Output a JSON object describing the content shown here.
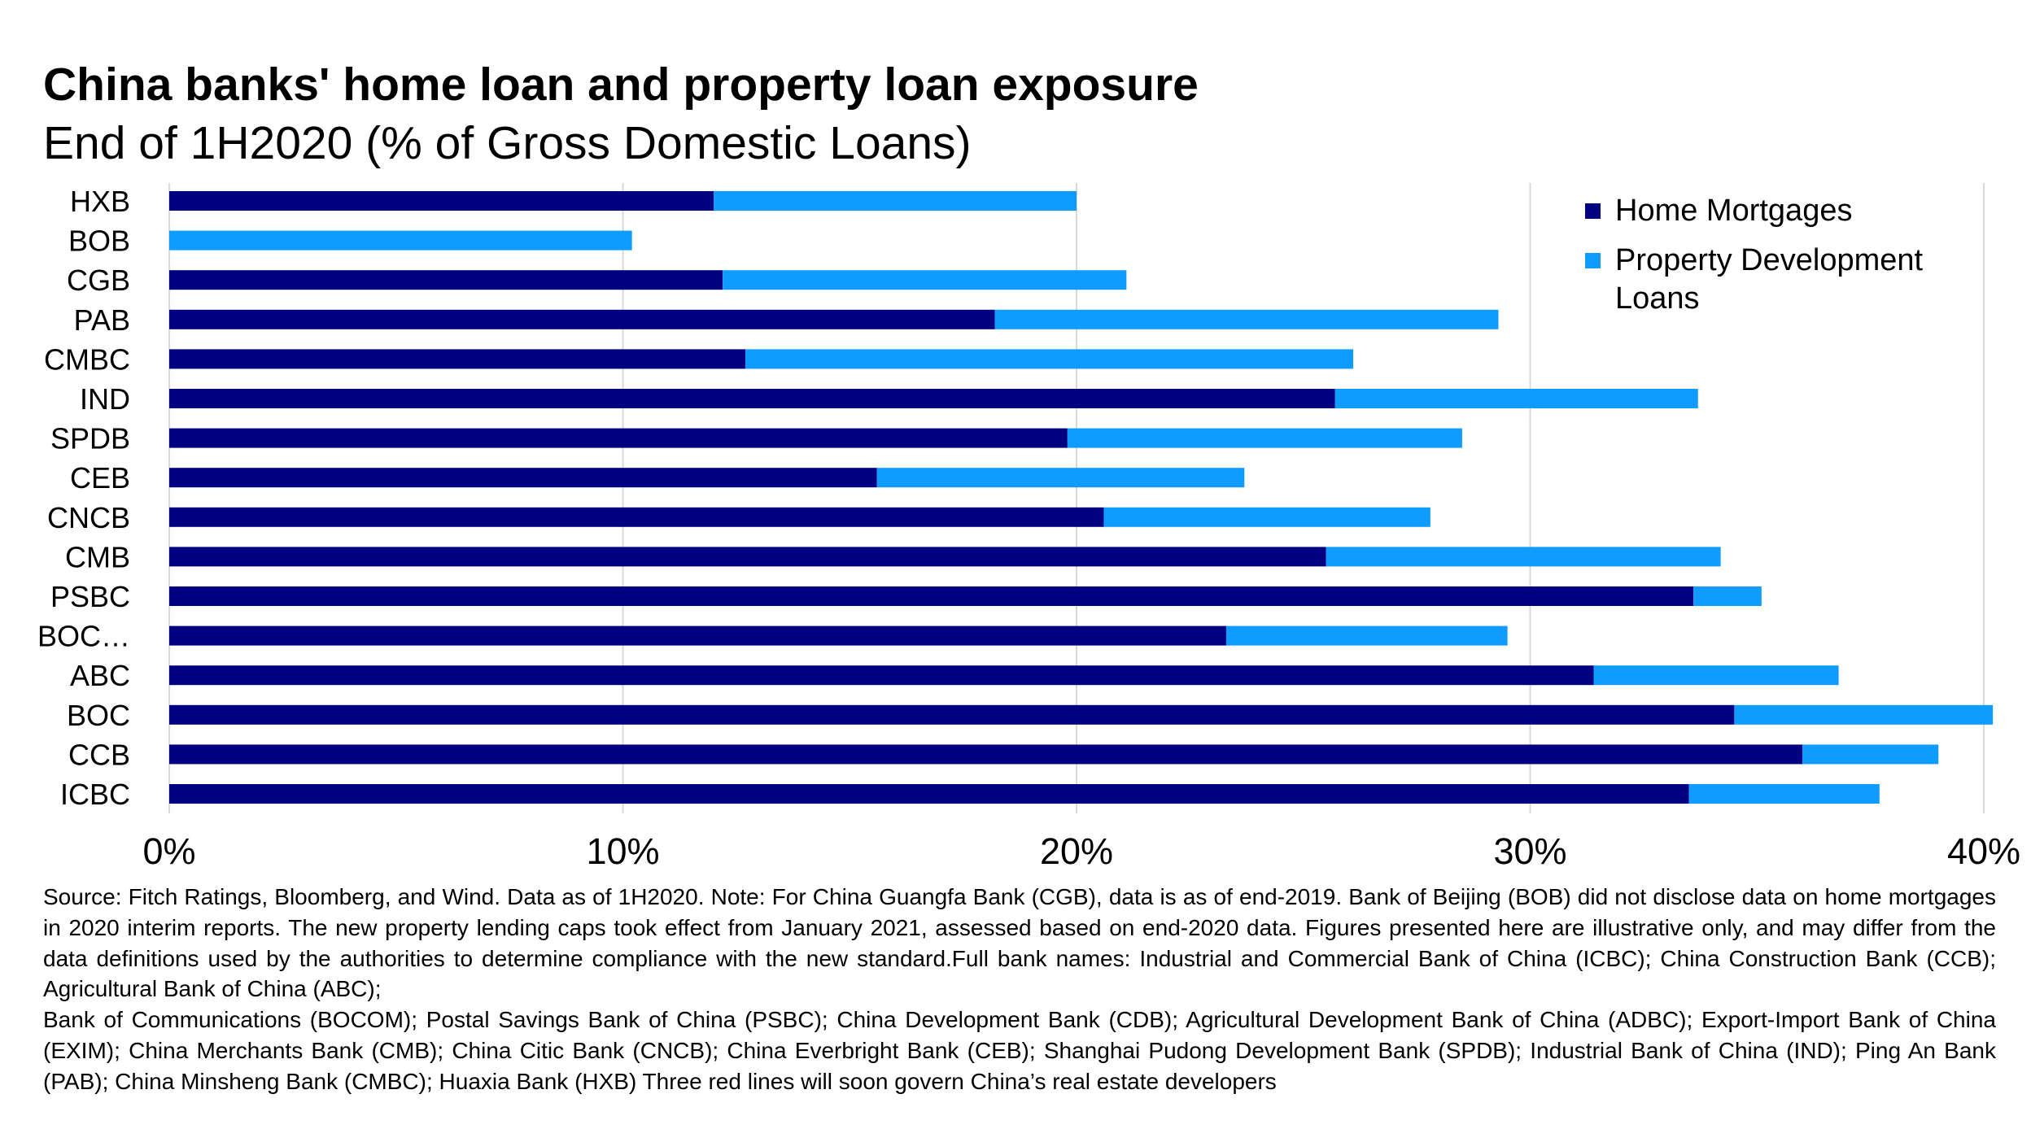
{
  "chart_data": {
    "type": "bar",
    "orientation": "horizontal",
    "stacked": true,
    "title": "China banks' home loan and property loan exposure",
    "subtitle": "End of 1H2020 (% of Gross Domestic Loans)",
    "categories": [
      "HXB",
      "BOB",
      "CGB",
      "PAB",
      "CMBC",
      "IND",
      "SPDB",
      "CEB",
      "CNCB",
      "CMB",
      "PSBC",
      "BOC…",
      "ABC",
      "BOC",
      "CCB",
      "ICBC",
      ""
    ],
    "series": [
      {
        "name": "Home Mortgages",
        "color": "#000080",
        "values": [
          12.0,
          0,
          12.2,
          18.2,
          12.7,
          25.7,
          19.8,
          15.6,
          20.6,
          25.5,
          33.6,
          23.3,
          31.4,
          34.5,
          36.0,
          33.5,
          0
        ]
      },
      {
        "name": "Property Development Loans",
        "color": "#0F9BFF",
        "values": [
          8.0,
          10.2,
          8.9,
          11.1,
          13.4,
          8.0,
          8.7,
          8.1,
          7.2,
          8.7,
          1.5,
          6.2,
          5.4,
          5.7,
          3.0,
          4.2,
          0
        ]
      }
    ],
    "xlim": [
      0,
      40
    ],
    "xticks": [
      "0%",
      "10%",
      "20%",
      "30%",
      "40%"
    ],
    "grid": "vertical",
    "legend_position": "top-right"
  },
  "legend": {
    "home": "Home Mortgages",
    "property": "Property Development Loans"
  },
  "source": {
    "paragraph1": "Source: Fitch Ratings, Bloomberg, and Wind. Data as of 1H2020. Note: For China Guangfa Bank (CGB), data is as of end-2019. Bank of Beijing (BOB) did not disclose data on home mortgages in 2020 interim reports. The new property lending caps took effect from January 2021, assessed based on end-2020 data. Figures presented here are illustrative only, and may differ from the data definitions used by the authorities to determine compliance with the new standard.Full bank names: Industrial and Commercial Bank of China (ICBC); China Construction Bank (CCB); Agricultural Bank of China (ABC);",
    "paragraph2": "Bank of Communications (BOCOM); Postal Savings Bank of China (PSBC); China Development Bank (CDB); Agricultural Development Bank of China (ADBC); Export-Import Bank of China (EXIM); China Merchants Bank (CMB); China Citic Bank (CNCB); China Everbright Bank (CEB); Shanghai Pudong Development Bank (SPDB); Industrial Bank of China (IND); Ping An Bank (PAB); China Minsheng Bank (CMBC); Huaxia Bank (HXB) Three red lines will soon govern China’s real estate developers"
  }
}
